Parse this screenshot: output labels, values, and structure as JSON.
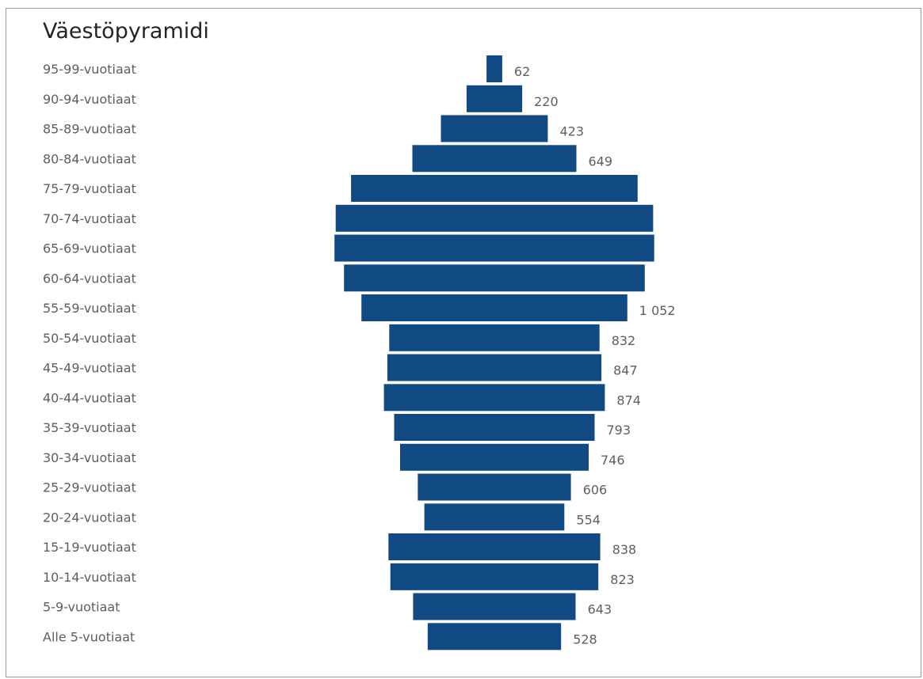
{
  "chart_data": {
    "type": "bar",
    "orientation": "horizontal-centered",
    "title": "Väestöpyramidi",
    "categories": [
      "95-99-vuotiaat",
      "90-94-vuotiaat",
      "85-89-vuotiaat",
      "80-84-vuotiaat",
      "75-79-vuotiaat",
      "70-74-vuotiaat",
      "65-69-vuotiaat",
      "60-64-vuotiaat",
      "55-59-vuotiaat",
      "50-54-vuotiaat",
      "45-49-vuotiaat",
      "40-44-vuotiaat",
      "35-39-vuotiaat",
      "30-34-vuotiaat",
      "25-29-vuotiaat",
      "20-24-vuotiaat",
      "15-19-vuotiaat",
      "10-14-vuotiaat",
      "5-9-vuotiaat",
      "Alle 5-vuotiaat"
    ],
    "values": [
      62,
      220,
      423,
      649,
      1134,
      1256,
      1265,
      1190,
      1052,
      832,
      847,
      874,
      793,
      746,
      606,
      554,
      838,
      823,
      643,
      528
    ],
    "value_labels": [
      "62",
      "220",
      "423",
      "649",
      "",
      "",
      "",
      "",
      "1 052",
      "832",
      "847",
      "874",
      "793",
      "746",
      "606",
      "554",
      "838",
      "823",
      "643",
      "528"
    ],
    "bar_color": "#114a82",
    "xlabel": "",
    "ylabel": "",
    "grid": false,
    "legend": "none"
  }
}
